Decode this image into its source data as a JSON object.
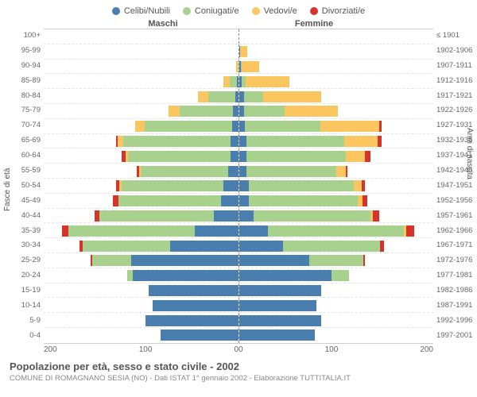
{
  "legend": [
    {
      "label": "Celibi/Nubili",
      "color": "#4a7eaf"
    },
    {
      "label": "Coniugati/e",
      "color": "#a9d18e"
    },
    {
      "label": "Vedovi/e",
      "color": "#fbc55f"
    },
    {
      "label": "Divorziati/e",
      "color": "#d6332a"
    }
  ],
  "headers": {
    "left": "Maschi",
    "right": "Femmine"
  },
  "y_left_label": "Fasce di età",
  "y_right_label": "Anni di nascita",
  "colors": {
    "celibi": "#4a7eaf",
    "coniugati": "#a9d18e",
    "vedovi": "#fbc55f",
    "divorziati": "#d6332a",
    "grid": "#e5e5e5",
    "center": "#888888",
    "bg": "#ffffff"
  },
  "x_max": 200,
  "x_ticks_left": [
    "200",
    "100",
    "0"
  ],
  "x_ticks_right": [
    "0",
    "100",
    "200"
  ],
  "age_labels": [
    "100+",
    "95-99",
    "90-94",
    "85-89",
    "80-84",
    "75-79",
    "70-74",
    "65-69",
    "60-64",
    "55-59",
    "50-54",
    "45-49",
    "40-44",
    "35-39",
    "30-34",
    "25-29",
    "20-24",
    "15-19",
    "10-14",
    "5-9",
    "0-4"
  ],
  "birth_labels": [
    "≤ 1901",
    "1902-1906",
    "1907-1911",
    "1912-1916",
    "1917-1921",
    "1922-1926",
    "1927-1931",
    "1932-1936",
    "1937-1941",
    "1942-1946",
    "1947-1951",
    "1952-1956",
    "1957-1961",
    "1962-1966",
    "1967-1971",
    "1972-1976",
    "1977-1981",
    "1982-1986",
    "1987-1991",
    "1992-1996",
    "1997-2001"
  ],
  "data": [
    {
      "m": {
        "c": 0,
        "g": 0,
        "v": 0,
        "d": 0
      },
      "f": {
        "c": 0,
        "g": 0,
        "v": 0,
        "d": 0
      }
    },
    {
      "m": {
        "c": 0,
        "g": 0,
        "v": 0,
        "d": 0
      },
      "f": {
        "c": 1,
        "g": 0,
        "v": 8,
        "d": 0
      }
    },
    {
      "m": {
        "c": 0,
        "g": 0,
        "v": 2,
        "d": 0
      },
      "f": {
        "c": 2,
        "g": 1,
        "v": 18,
        "d": 0
      }
    },
    {
      "m": {
        "c": 1,
        "g": 8,
        "v": 6,
        "d": 0
      },
      "f": {
        "c": 3,
        "g": 4,
        "v": 45,
        "d": 0
      }
    },
    {
      "m": {
        "c": 3,
        "g": 28,
        "v": 10,
        "d": 0
      },
      "f": {
        "c": 5,
        "g": 20,
        "v": 60,
        "d": 0
      }
    },
    {
      "m": {
        "c": 5,
        "g": 55,
        "v": 12,
        "d": 0
      },
      "f": {
        "c": 5,
        "g": 42,
        "v": 55,
        "d": 0
      }
    },
    {
      "m": {
        "c": 6,
        "g": 90,
        "v": 10,
        "d": 0
      },
      "f": {
        "c": 6,
        "g": 78,
        "v": 60,
        "d": 3
      }
    },
    {
      "m": {
        "c": 8,
        "g": 110,
        "v": 6,
        "d": 2
      },
      "f": {
        "c": 8,
        "g": 100,
        "v": 35,
        "d": 4
      }
    },
    {
      "m": {
        "c": 8,
        "g": 105,
        "v": 3,
        "d": 4
      },
      "f": {
        "c": 8,
        "g": 102,
        "v": 20,
        "d": 5
      }
    },
    {
      "m": {
        "c": 10,
        "g": 90,
        "v": 2,
        "d": 2
      },
      "f": {
        "c": 8,
        "g": 92,
        "v": 10,
        "d": 2
      }
    },
    {
      "m": {
        "c": 15,
        "g": 105,
        "v": 2,
        "d": 4
      },
      "f": {
        "c": 10,
        "g": 108,
        "v": 8,
        "d": 4
      }
    },
    {
      "m": {
        "c": 18,
        "g": 105,
        "v": 0,
        "d": 6
      },
      "f": {
        "c": 10,
        "g": 112,
        "v": 5,
        "d": 5
      }
    },
    {
      "m": {
        "c": 25,
        "g": 118,
        "v": 0,
        "d": 5
      },
      "f": {
        "c": 15,
        "g": 120,
        "v": 3,
        "d": 6
      }
    },
    {
      "m": {
        "c": 45,
        "g": 130,
        "v": 0,
        "d": 6
      },
      "f": {
        "c": 30,
        "g": 140,
        "v": 2,
        "d": 8
      }
    },
    {
      "m": {
        "c": 70,
        "g": 90,
        "v": 0,
        "d": 3
      },
      "f": {
        "c": 45,
        "g": 100,
        "v": 0,
        "d": 4
      }
    },
    {
      "m": {
        "c": 110,
        "g": 40,
        "v": 0,
        "d": 2
      },
      "f": {
        "c": 72,
        "g": 56,
        "v": 0,
        "d": 2
      }
    },
    {
      "m": {
        "c": 108,
        "g": 6,
        "v": 0,
        "d": 0
      },
      "f": {
        "c": 95,
        "g": 18,
        "v": 0,
        "d": 0
      }
    },
    {
      "m": {
        "c": 92,
        "g": 0,
        "v": 0,
        "d": 0
      },
      "f": {
        "c": 85,
        "g": 0,
        "v": 0,
        "d": 0
      }
    },
    {
      "m": {
        "c": 88,
        "g": 0,
        "v": 0,
        "d": 0
      },
      "f": {
        "c": 80,
        "g": 0,
        "v": 0,
        "d": 0
      }
    },
    {
      "m": {
        "c": 95,
        "g": 0,
        "v": 0,
        "d": 0
      },
      "f": {
        "c": 85,
        "g": 0,
        "v": 0,
        "d": 0
      }
    },
    {
      "m": {
        "c": 80,
        "g": 0,
        "v": 0,
        "d": 0
      },
      "f": {
        "c": 78,
        "g": 0,
        "v": 0,
        "d": 0
      }
    }
  ],
  "footer": {
    "title": "Popolazione per età, sesso e stato civile - 2002",
    "subtitle": "COMUNE DI ROMAGNANO SESIA (NO) - Dati ISTAT 1° gennaio 2002 - Elaborazione TUTTITALIA.IT"
  }
}
